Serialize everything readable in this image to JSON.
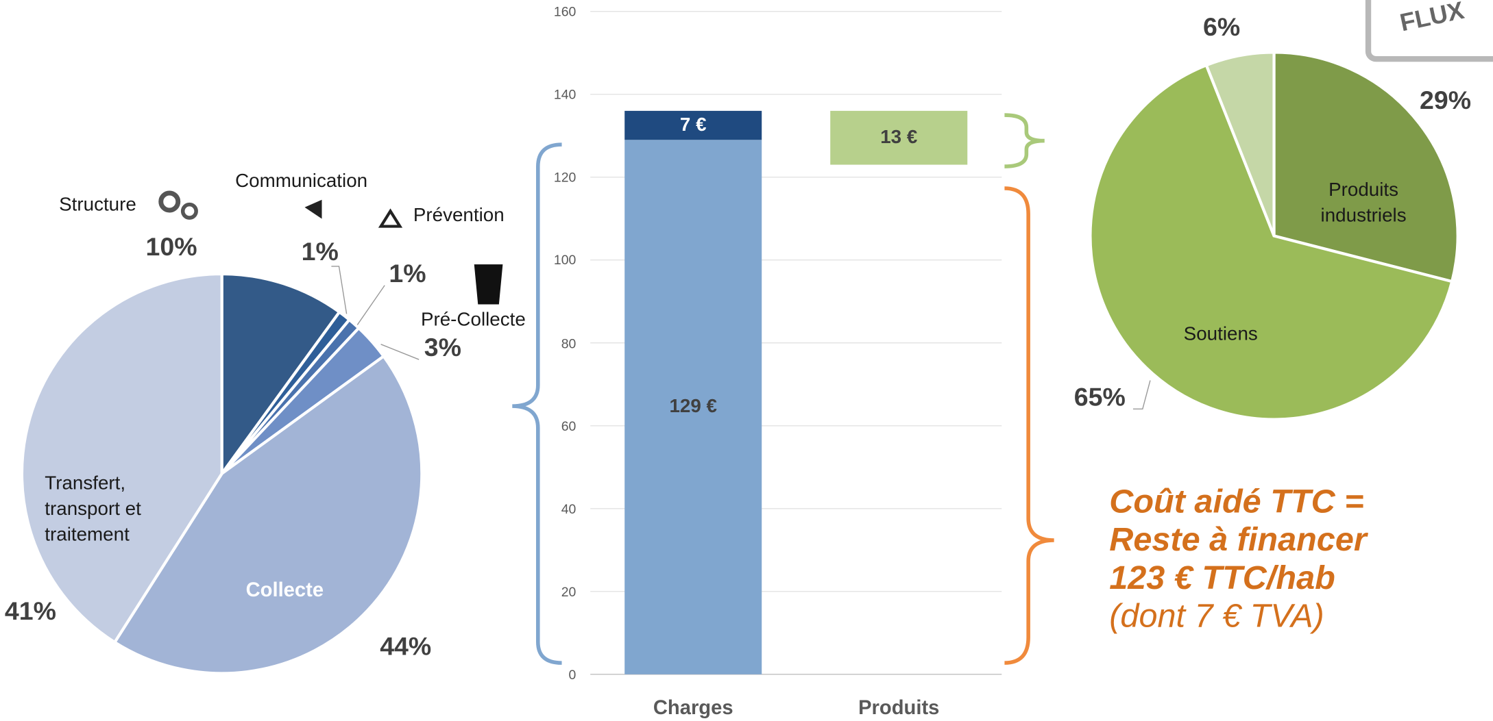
{
  "logo_text": "FLUX",
  "chart_data": [
    {
      "type": "pie",
      "categories": [
        "Structure",
        "Communication",
        "Prévention",
        "Pré-Collecte",
        "Collecte",
        "Transfert, transport et traitement"
      ],
      "values": [
        10,
        1,
        1,
        3,
        44,
        41
      ],
      "value_labels": [
        "10%",
        "1%",
        "1%",
        "3%",
        "44%",
        "41%"
      ],
      "colors": [
        "#335a88",
        "#2e5e98",
        "#4a72ad",
        "#6f8fc6",
        "#a2b4d6",
        "#c3cde2"
      ]
    },
    {
      "type": "bar",
      "stacked": true,
      "categories": [
        "Charges",
        "Produits"
      ],
      "series": [
        {
          "color": "#80a6cf",
          "values": [
            129,
            null
          ],
          "value_labels": [
            "129 €",
            null
          ]
        },
        {
          "color": "#1f4a80",
          "values": [
            7,
            null
          ],
          "value_labels": [
            "7 €",
            null
          ]
        },
        {
          "color": "none",
          "values": [
            null,
            123
          ]
        },
        {
          "color": "#b7d08c",
          "values": [
            null,
            13
          ],
          "value_labels": [
            null,
            "13 €"
          ]
        }
      ],
      "ylim": [
        0,
        160
      ],
      "yticks": [
        0,
        20,
        40,
        60,
        80,
        100,
        120,
        140,
        160
      ],
      "grid": true,
      "annotation": [
        "Coût aidé TTC =",
        "Reste à financer",
        "123 € TTC/hab",
        "(dont 7 € TVA)"
      ]
    },
    {
      "type": "pie",
      "categories": [
        "Produits industriels",
        "Soutiens",
        null
      ],
      "values": [
        29,
        65,
        6
      ],
      "value_labels": [
        "29%",
        "65%",
        "6%"
      ],
      "colors": [
        "#7f9b49",
        "#9bbb59",
        "#c5d7a7"
      ]
    }
  ]
}
